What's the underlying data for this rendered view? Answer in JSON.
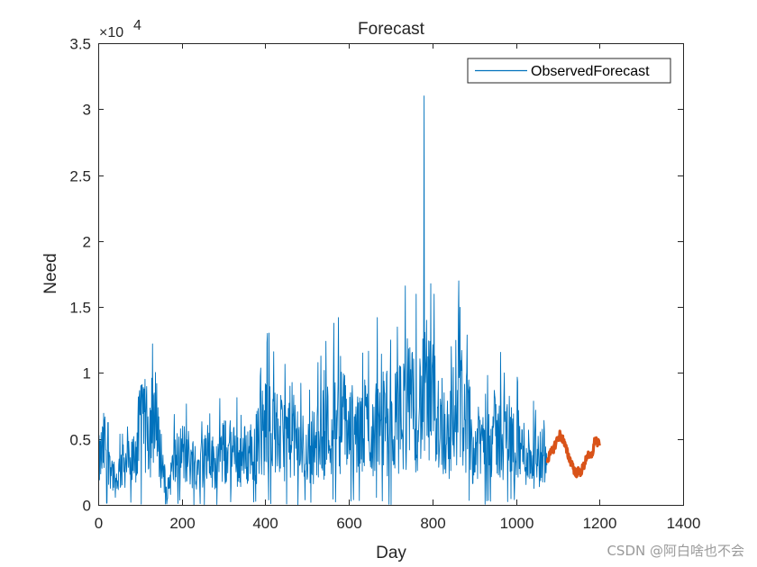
{
  "chart_data": {
    "type": "line",
    "title": "Forecast",
    "xlabel": "Day",
    "ylabel": "Need",
    "xlim": [
      0,
      1400
    ],
    "ylim": [
      0,
      35000
    ],
    "xticks": [
      0,
      200,
      400,
      600,
      800,
      1000,
      1200,
      1400
    ],
    "xtick_labels": [
      "0",
      "200",
      "400",
      "600",
      "800",
      "1000",
      "1200",
      "1400"
    ],
    "yticks": [
      0,
      5000,
      10000,
      15000,
      20000,
      25000,
      30000,
      35000
    ],
    "ytick_labels": [
      "0",
      "0.5",
      "1",
      "1.5",
      "2",
      "2.5",
      "3",
      "3.5"
    ],
    "y_exponent_label": "×10",
    "y_exponent_power": "4",
    "legend": {
      "label": "ObservedForecast",
      "placement": "top-right"
    },
    "series": [
      {
        "name": "Observed",
        "color": "#0072BD",
        "style": "thin-line",
        "x_start": 1,
        "x_end": 1074,
        "anchors": [
          [
            0,
            3000
          ],
          [
            20,
            5000
          ],
          [
            40,
            1500
          ],
          [
            60,
            3500
          ],
          [
            80,
            3000
          ],
          [
            100,
            5500
          ],
          [
            120,
            6000
          ],
          [
            140,
            5000
          ],
          [
            155,
            3000
          ],
          [
            165,
            1000
          ],
          [
            180,
            3000
          ],
          [
            200,
            4000
          ],
          [
            220,
            3500
          ],
          [
            240,
            3000
          ],
          [
            260,
            3500
          ],
          [
            280,
            3200
          ],
          [
            300,
            4000
          ],
          [
            320,
            3800
          ],
          [
            340,
            3500
          ],
          [
            360,
            4000
          ],
          [
            380,
            4500
          ],
          [
            400,
            6000
          ],
          [
            420,
            5500
          ],
          [
            440,
            5000
          ],
          [
            460,
            5500
          ],
          [
            480,
            4500
          ],
          [
            500,
            4000
          ],
          [
            520,
            4500
          ],
          [
            540,
            5500
          ],
          [
            560,
            6000
          ],
          [
            580,
            6500
          ],
          [
            600,
            6000
          ],
          [
            620,
            5000
          ],
          [
            640,
            6000
          ],
          [
            660,
            5500
          ],
          [
            680,
            6500
          ],
          [
            700,
            6000
          ],
          [
            720,
            6500
          ],
          [
            740,
            7500
          ],
          [
            760,
            7000
          ],
          [
            780,
            8000
          ],
          [
            800,
            7500
          ],
          [
            820,
            6500
          ],
          [
            840,
            5000
          ],
          [
            860,
            8500
          ],
          [
            880,
            6500
          ],
          [
            900,
            4000
          ],
          [
            920,
            5000
          ],
          [
            940,
            5500
          ],
          [
            960,
            5000
          ],
          [
            980,
            5500
          ],
          [
            1000,
            4500
          ],
          [
            1020,
            4000
          ],
          [
            1040,
            3500
          ],
          [
            1060,
            3500
          ],
          [
            1074,
            5000
          ]
        ],
        "peaks": [
          [
            780,
            31000
          ],
          [
            786,
            14000
          ],
          [
            575,
            14200
          ],
          [
            668,
            14200
          ],
          [
            862,
            14400
          ],
          [
            405,
            13000
          ],
          [
            700,
            12500
          ],
          [
            740,
            12600
          ],
          [
            845,
            12000
          ],
          [
            108,
            8900
          ],
          [
            140,
            9200
          ],
          [
            545,
            12400
          ]
        ]
      },
      {
        "name": "Forecast",
        "color": "#D95319",
        "style": "thick-line",
        "x": [
          1075,
          1082,
          1090,
          1098,
          1105,
          1112,
          1120,
          1128,
          1136,
          1142,
          1148,
          1155,
          1162,
          1170,
          1178,
          1185,
          1190,
          1195,
          1200
        ],
        "values": [
          3500,
          3800,
          4300,
          4900,
          5300,
          5000,
          4200,
          3500,
          3000,
          2400,
          2500,
          2500,
          2900,
          3800,
          3500,
          4200,
          5100,
          4700,
          4500
        ]
      }
    ]
  },
  "watermark": "CSDN @阿白啥也不会"
}
